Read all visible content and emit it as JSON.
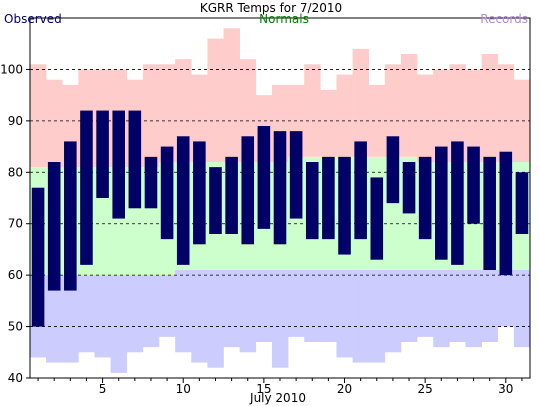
{
  "chart_data": {
    "type": "bar",
    "title": "KGRR Temps for 7/2010",
    "xlabel": "July 2010",
    "ylabel": "",
    "legend": {
      "observed": "Observed",
      "normals": "Normals",
      "records": "Records"
    },
    "colors": {
      "observed": "#000066",
      "normals_fill": "#ccffcc",
      "records_fill": "#ccccff",
      "record_high_fill": "#ffcccc",
      "legend_observed": "#000066",
      "legend_normals": "#008000",
      "legend_records": "#b38ad9"
    },
    "ylim": [
      40,
      110
    ],
    "xlim": [
      0.5,
      31.5
    ],
    "yticks": [
      40,
      50,
      60,
      70,
      80,
      90,
      100
    ],
    "xticks": [
      5,
      10,
      15,
      20,
      25,
      30
    ],
    "grid": "dashed-horizontal",
    "days": [
      1,
      2,
      3,
      4,
      5,
      6,
      7,
      8,
      9,
      10,
      11,
      12,
      13,
      14,
      15,
      16,
      17,
      18,
      19,
      20,
      21,
      22,
      23,
      24,
      25,
      26,
      27,
      28,
      29,
      30,
      31
    ],
    "observed_high": [
      77,
      82,
      86,
      92,
      92,
      92,
      92,
      83,
      85,
      87,
      86,
      81,
      83,
      87,
      89,
      88,
      88,
      82,
      83,
      83,
      86,
      79,
      87,
      82,
      83,
      85,
      86,
      85,
      83,
      84,
      80
    ],
    "observed_low": [
      50,
      57,
      57,
      62,
      75,
      71,
      73,
      73,
      67,
      62,
      66,
      68,
      68,
      66,
      69,
      66,
      71,
      67,
      67,
      64,
      67,
      63,
      74,
      72,
      67,
      63,
      62,
      70,
      61,
      60,
      68
    ],
    "normal_high": [
      81,
      81,
      81,
      81,
      81,
      81,
      81,
      81,
      82,
      82,
      82,
      82,
      82,
      82,
      82,
      82,
      83,
      83,
      83,
      83,
      83,
      83,
      83,
      83,
      82,
      82,
      82,
      82,
      82,
      82,
      82
    ],
    "normal_low": [
      60,
      60,
      60,
      60,
      60,
      60,
      60,
      60,
      60,
      61,
      61,
      61,
      61,
      61,
      61,
      61,
      61,
      61,
      61,
      61,
      61,
      61,
      61,
      61,
      61,
      61,
      61,
      61,
      61,
      61,
      61
    ],
    "record_high": [
      101,
      98,
      97,
      100,
      100,
      100,
      98,
      101,
      101,
      102,
      99,
      106,
      108,
      102,
      95,
      97,
      97,
      101,
      96,
      99,
      104,
      97,
      101,
      103,
      99,
      100,
      101,
      100,
      103,
      101,
      98
    ],
    "record_low": [
      44,
      43,
      43,
      45,
      44,
      41,
      45,
      46,
      48,
      45,
      43,
      42,
      46,
      45,
      47,
      42,
      48,
      47,
      47,
      44,
      43,
      43,
      45,
      47,
      48,
      46,
      47,
      46,
      47,
      50,
      46
    ]
  }
}
